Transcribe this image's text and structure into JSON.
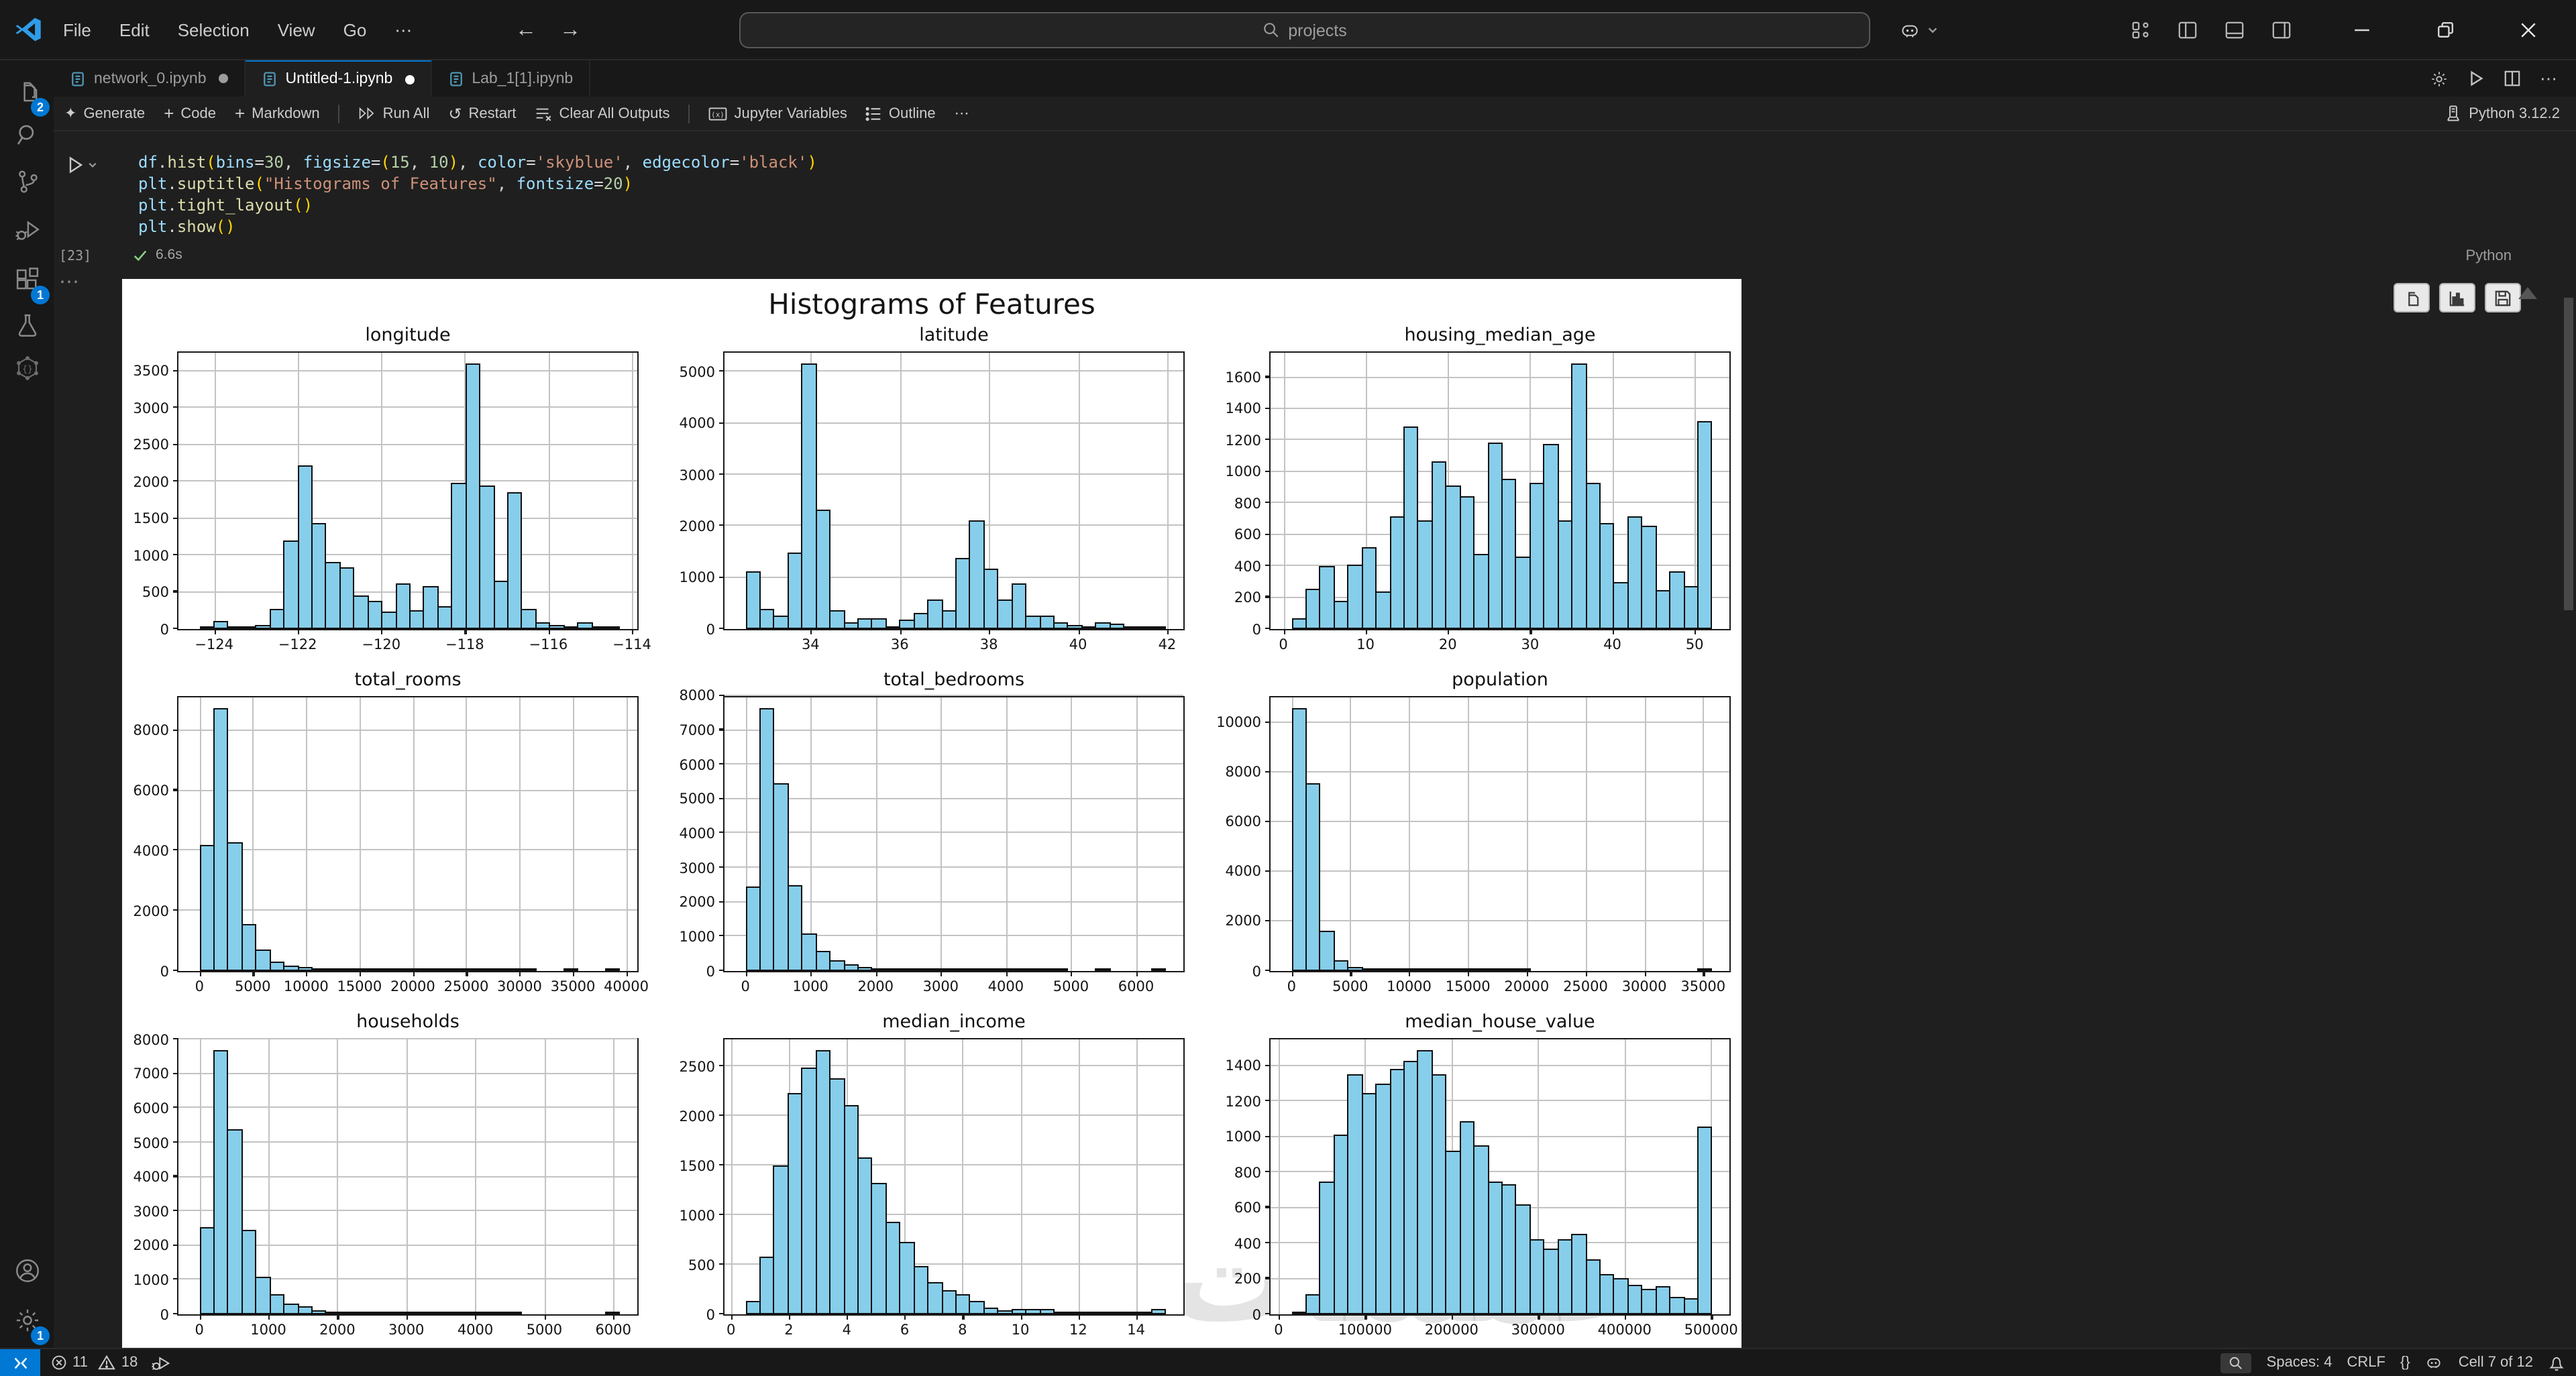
{
  "colors": {
    "accent": "#0078d4",
    "bar_fill": "#87ceeb",
    "bar_edge": "#000000"
  },
  "titlebar": {
    "menus": [
      "File",
      "Edit",
      "Selection",
      "View",
      "Go",
      "⋯"
    ],
    "search_placeholder": "projects",
    "icons": [
      "copilot",
      "customize-layout",
      "toggle-panel-left",
      "toggle-panel-bottom",
      "toggle-panel-right",
      "minimize",
      "restore",
      "close"
    ]
  },
  "activity_bar": {
    "icons": [
      "explorer",
      "search",
      "source-control",
      "run-and-debug",
      "extensions",
      "testing",
      "ai-tools",
      "account",
      "settings"
    ],
    "badges": {
      "explorer": "2",
      "extensions": "1",
      "settings": "1"
    }
  },
  "tabs": [
    {
      "label": "network_0.ipynb",
      "modified": true,
      "active": false
    },
    {
      "label": "Untitled-1.ipynb",
      "modified": true,
      "active": true
    },
    {
      "label": "Lab_1[1].ipynb",
      "modified": false,
      "active": false
    }
  ],
  "editor_actions": [
    "settings-gear",
    "run-all",
    "split-editor",
    "more-actions"
  ],
  "notebook_toolbar": {
    "generate": "Generate",
    "code": "Code",
    "markdown": "Markdown",
    "run_all": "Run All",
    "restart": "Restart",
    "clear_all_outputs": "Clear All Outputs",
    "jupyter_variables": "Jupyter Variables",
    "outline": "Outline",
    "more": "⋯",
    "kernel": "Python 3.12.2"
  },
  "cell": {
    "execution_count": "[23]",
    "duration": "6.6s",
    "language": "Python",
    "code_tokens": [
      [
        {
          "t": "df",
          "c": "v"
        },
        {
          "t": ".",
          "c": "p"
        },
        {
          "t": "hist",
          "c": "f"
        },
        {
          "t": "(",
          "c": "b"
        },
        {
          "t": "bins",
          "c": "v"
        },
        {
          "t": "=",
          "c": "p"
        },
        {
          "t": "30",
          "c": "n"
        },
        {
          "t": ", ",
          "c": "p"
        },
        {
          "t": "figsize",
          "c": "v"
        },
        {
          "t": "=",
          "c": "p"
        },
        {
          "t": "(",
          "c": "b"
        },
        {
          "t": "15",
          "c": "n"
        },
        {
          "t": ", ",
          "c": "p"
        },
        {
          "t": "10",
          "c": "n"
        },
        {
          "t": ")",
          "c": "b"
        },
        {
          "t": ", ",
          "c": "p"
        },
        {
          "t": "color",
          "c": "v"
        },
        {
          "t": "=",
          "c": "p"
        },
        {
          "t": "'skyblue'",
          "c": "s"
        },
        {
          "t": ", ",
          "c": "p"
        },
        {
          "t": "edgecolor",
          "c": "v"
        },
        {
          "t": "=",
          "c": "p"
        },
        {
          "t": "'black'",
          "c": "s"
        },
        {
          "t": ")",
          "c": "b"
        }
      ],
      [
        {
          "t": "plt",
          "c": "v"
        },
        {
          "t": ".",
          "c": "p"
        },
        {
          "t": "suptitle",
          "c": "f"
        },
        {
          "t": "(",
          "c": "b"
        },
        {
          "t": "\"Histograms of Features\"",
          "c": "s"
        },
        {
          "t": ", ",
          "c": "p"
        },
        {
          "t": "fontsize",
          "c": "v"
        },
        {
          "t": "=",
          "c": "p"
        },
        {
          "t": "20",
          "c": "n"
        },
        {
          "t": ")",
          "c": "b"
        }
      ],
      [
        {
          "t": "plt",
          "c": "v"
        },
        {
          "t": ".",
          "c": "p"
        },
        {
          "t": "tight_layout",
          "c": "f"
        },
        {
          "t": "(",
          "c": "b"
        },
        {
          "t": ")",
          "c": "b"
        }
      ],
      [
        {
          "t": "plt",
          "c": "v"
        },
        {
          "t": ".",
          "c": "p"
        },
        {
          "t": "show",
          "c": "f"
        },
        {
          "t": "(",
          "c": "b"
        },
        {
          "t": ")",
          "c": "b"
        }
      ]
    ]
  },
  "output_toolbar": [
    "copy-output",
    "open-plot-viewer",
    "save-output"
  ],
  "figure": {
    "suptitle": "Histograms of Features",
    "watermark": "خمسات"
  },
  "statusbar": {
    "errors": "11",
    "warnings": "18",
    "spaces": "Spaces: 4",
    "eol": "CRLF",
    "brackets": "{}",
    "cell_position": "Cell 7 of 12"
  },
  "chart_data": [
    {
      "type": "bar",
      "subtype": "histogram",
      "title": "longitude",
      "bin_start": -124.35,
      "bin_width": 0.3347,
      "xlim": [
        -124.852,
        -113.807
      ],
      "xticks": [
        -124,
        -122,
        -120,
        -118,
        -116,
        -114
      ],
      "xtick_labels": [
        "−124",
        "−122",
        "−120",
        "−118",
        "−116",
        "−114"
      ],
      "ylim": [
        0,
        3790
      ],
      "yticks": [
        0,
        500,
        1000,
        1500,
        2000,
        2500,
        3000,
        3500
      ],
      "values": [
        10,
        110,
        30,
        25,
        55,
        270,
        1210,
        2230,
        1440,
        910,
        830,
        460,
        390,
        230,
        620,
        250,
        580,
        310,
        1980,
        3600,
        1950,
        650,
        1860,
        270,
        100,
        55,
        20,
        85,
        5,
        20
      ]
    },
    {
      "type": "bar",
      "subtype": "histogram",
      "title": "latitude",
      "bin_start": 32.54,
      "bin_width": 0.3137,
      "xlim": [
        32.069,
        42.422
      ],
      "xticks": [
        34,
        36,
        38,
        40,
        42
      ],
      "xtick_labels": [
        "34",
        "36",
        "38",
        "40",
        "42"
      ],
      "ylim": [
        0,
        5430
      ],
      "yticks": [
        0,
        1000,
        2000,
        3000,
        4000,
        5000
      ],
      "values": [
        1130,
        380,
        260,
        1480,
        5170,
        2330,
        360,
        120,
        210,
        200,
        50,
        180,
        320,
        580,
        360,
        1380,
        2120,
        1180,
        580,
        890,
        260,
        260,
        130,
        80,
        60,
        140,
        100,
        30,
        20,
        10
      ]
    },
    {
      "type": "bar",
      "subtype": "histogram",
      "title": "housing_median_age",
      "bin_start": 1,
      "bin_width": 1.7,
      "xlim": [
        -1.55,
        54.55
      ],
      "xticks": [
        0,
        10,
        20,
        30,
        40,
        50
      ],
      "xtick_labels": [
        "0",
        "10",
        "20",
        "30",
        "40",
        "50"
      ],
      "ylim": [
        0,
        1775
      ],
      "yticks": [
        0,
        200,
        400,
        600,
        800,
        1000,
        1200,
        1400,
        1600
      ],
      "values": [
        65,
        255,
        400,
        180,
        410,
        520,
        240,
        715,
        1285,
        695,
        1070,
        910,
        845,
        480,
        1185,
        955,
        465,
        930,
        1180,
        690,
        1690,
        930,
        675,
        295,
        720,
        655,
        245,
        370,
        270,
        1320
      ]
    },
    {
      "type": "bar",
      "subtype": "histogram",
      "title": "total_rooms",
      "bin_start": 2,
      "bin_width": 1310.6,
      "xlim": [
        -1964,
        41286
      ],
      "xticks": [
        0,
        5000,
        10000,
        15000,
        20000,
        25000,
        30000,
        35000,
        40000
      ],
      "xtick_labels": [
        "0",
        "5000",
        "10000",
        "15000",
        "20000",
        "25000",
        "30000",
        "35000",
        "40000"
      ],
      "ylim": [
        0,
        9190
      ],
      "yticks": [
        0,
        2000,
        4000,
        6000,
        8000
      ],
      "values": [
        4200,
        8750,
        4300,
        1550,
        700,
        320,
        200,
        120,
        60,
        40,
        25,
        20,
        15,
        10,
        8,
        5,
        4,
        3,
        2,
        2,
        1,
        1,
        1,
        1,
        0,
        0,
        1,
        0,
        0,
        1
      ]
    },
    {
      "type": "bar",
      "subtype": "histogram",
      "title": "total_bedrooms",
      "bin_start": 1,
      "bin_width": 214.8,
      "xlim": [
        -321,
        6767
      ],
      "xticks": [
        0,
        1000,
        2000,
        3000,
        4000,
        5000,
        6000
      ],
      "xtick_labels": [
        "0",
        "1000",
        "2000",
        "3000",
        "4000",
        "5000",
        "6000"
      ],
      "ylim": [
        0,
        8033
      ],
      "yticks": [
        0,
        1000,
        2000,
        3000,
        4000,
        5000,
        6000,
        7000,
        8000
      ],
      "values": [
        2450,
        7650,
        5450,
        2480,
        1100,
        580,
        320,
        210,
        120,
        70,
        40,
        30,
        20,
        15,
        10,
        8,
        5,
        4,
        3,
        2,
        1,
        1,
        1,
        0,
        0,
        1,
        0,
        0,
        0,
        1
      ]
    },
    {
      "type": "bar",
      "subtype": "histogram",
      "title": "population",
      "bin_start": 3,
      "bin_width": 1189.3,
      "xlim": [
        -1781,
        37466
      ],
      "xticks": [
        0,
        5000,
        10000,
        15000,
        20000,
        25000,
        30000,
        35000
      ],
      "xtick_labels": [
        "0",
        "5000",
        "10000",
        "15000",
        "20000",
        "25000",
        "30000",
        "35000"
      ],
      "ylim": [
        0,
        11130
      ],
      "yticks": [
        0,
        2000,
        4000,
        6000,
        8000,
        10000
      ],
      "values": [
        10600,
        7550,
        1600,
        450,
        150,
        80,
        40,
        20,
        10,
        8,
        5,
        3,
        2,
        2,
        1,
        1,
        1,
        0,
        0,
        0,
        0,
        0,
        0,
        0,
        0,
        0,
        0,
        0,
        0,
        1
      ]
    },
    {
      "type": "bar",
      "subtype": "histogram",
      "title": "households",
      "bin_start": 1,
      "bin_width": 202.7,
      "xlim": [
        -303,
        6386
      ],
      "xticks": [
        0,
        1000,
        2000,
        3000,
        4000,
        5000,
        6000
      ],
      "xtick_labels": [
        "0",
        "1000",
        "2000",
        "3000",
        "4000",
        "5000",
        "6000"
      ],
      "ylim": [
        0,
        8085
      ],
      "yticks": [
        0,
        1000,
        2000,
        3000,
        4000,
        5000,
        6000,
        7000,
        8000
      ],
      "values": [
        2520,
        7700,
        5380,
        2480,
        1100,
        580,
        320,
        230,
        110,
        70,
        40,
        30,
        20,
        15,
        10,
        8,
        5,
        4,
        3,
        2,
        1,
        1,
        1,
        0,
        0,
        0,
        0,
        0,
        0,
        1
      ]
    },
    {
      "type": "bar",
      "subtype": "histogram",
      "title": "median_income",
      "bin_start": 0.4999,
      "bin_width": 0.4833,
      "xlim": [
        -0.225,
        15.724
      ],
      "xticks": [
        0,
        2,
        4,
        6,
        8,
        10,
        12,
        14
      ],
      "xtick_labels": [
        "0",
        "2",
        "4",
        "6",
        "8",
        "10",
        "12",
        "14"
      ],
      "ylim": [
        0,
        2804
      ],
      "yticks": [
        0,
        500,
        1000,
        1500,
        2000,
        2500
      ],
      "values": [
        140,
        580,
        1510,
        2240,
        2490,
        2670,
        2380,
        2120,
        1590,
        1330,
        930,
        730,
        490,
        320,
        250,
        210,
        130,
        70,
        40,
        60,
        60,
        50,
        20,
        15,
        10,
        10,
        5,
        5,
        3,
        50
      ]
    },
    {
      "type": "bar",
      "subtype": "histogram",
      "title": "median_house_value",
      "bin_start": 14999,
      "bin_width": 16166.7,
      "xlim": [
        -9251,
        524251
      ],
      "xticks": [
        0,
        100000,
        200000,
        300000,
        400000,
        500000
      ],
      "xtick_labels": [
        "0",
        "100000",
        "200000",
        "300000",
        "400000",
        "500000"
      ],
      "ylim": [
        0,
        1565
      ],
      "yticks": [
        0,
        200,
        400,
        600,
        800,
        1000,
        1200,
        1400
      ],
      "values": [
        10,
        110,
        750,
        1010,
        1350,
        1250,
        1300,
        1380,
        1430,
        1490,
        1350,
        920,
        1090,
        950,
        750,
        730,
        620,
        420,
        370,
        420,
        450,
        310,
        230,
        205,
        170,
        140,
        160,
        95,
        90,
        1060
      ]
    }
  ]
}
